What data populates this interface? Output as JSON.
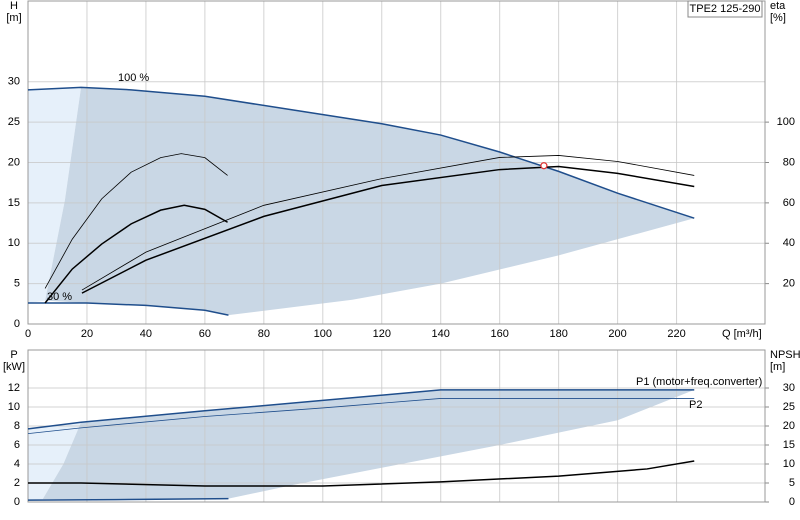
{
  "chart_data": [
    {
      "type": "line",
      "title": "TPE2 125-290",
      "ylabel": "H",
      "yunit": "[m]",
      "y2label": "eta",
      "y2unit": "[%]",
      "xlabel": "Q [m³/h]",
      "xlim": [
        0,
        250
      ],
      "xticks": [
        0,
        20,
        40,
        60,
        80,
        100,
        120,
        140,
        160,
        180,
        200,
        220
      ],
      "ylim": [
        0,
        40
      ],
      "yticks": [
        0,
        5,
        10,
        15,
        20,
        25,
        30
      ],
      "y2lim": [
        0,
        160
      ],
      "y2ticks": [
        20,
        40,
        60,
        80,
        100
      ],
      "grid": true,
      "xtick_labels": true,
      "series": [
        {
          "kind": "area",
          "color": "#e6f0fa",
          "x": [
            0,
            18,
            12.5,
            5.8,
            0
          ],
          "values": [
            29,
            29.3,
            15.3,
            2.9,
            2.6
          ]
        },
        {
          "kind": "area",
          "color": "#c9d7e5",
          "x": [
            18,
            35,
            60,
            90,
            120,
            140,
            160,
            180,
            200,
            226,
            180,
            140,
            110,
            68,
            60,
            40,
            20,
            5.8,
            12.5
          ],
          "values": [
            29.3,
            29,
            28.2,
            26.5,
            24.8,
            23.4,
            21.3,
            18.9,
            16.2,
            13.1,
            8.5,
            5,
            3,
            1.1,
            1.7,
            2.3,
            2.6,
            2.9,
            15.3
          ]
        },
        {
          "name": "100 %",
          "kind": "line",
          "weight": "thick",
          "color": "#1f4e8c",
          "x": [
            0,
            18,
            35,
            60,
            90,
            120,
            140,
            160,
            180,
            200,
            226
          ],
          "values": [
            29,
            29.3,
            29,
            28.2,
            26.5,
            24.8,
            23.4,
            21.3,
            18.9,
            16.2,
            13.1
          ]
        },
        {
          "name": "30 %",
          "kind": "line",
          "weight": "thick",
          "color": "#1f4e8c",
          "x": [
            0,
            20,
            40,
            60,
            68
          ],
          "values": [
            2.6,
            2.6,
            2.3,
            1.7,
            1.1
          ]
        },
        {
          "kind": "line",
          "weight": "thin",
          "color": "#000000",
          "x": [
            5.8,
            15,
            25,
            35,
            45,
            52,
            60,
            67.7
          ],
          "values": [
            4.4,
            10.5,
            15.5,
            18.8,
            20.6,
            21.1,
            20.6,
            18.4
          ]
        },
        {
          "kind": "line",
          "weight": "thick",
          "color": "#000000",
          "x": [
            5.8,
            15,
            25,
            35,
            45,
            53,
            60,
            67.7
          ],
          "values": [
            2.6,
            6.8,
            9.9,
            12.4,
            14.1,
            14.7,
            14.2,
            12.6
          ]
        },
        {
          "kind": "line",
          "weight": "thin",
          "color": "#000000",
          "axis": "y2",
          "x": [
            18.3,
            40,
            80,
            120,
            160,
            180,
            200,
            226
          ],
          "values": [
            16.8,
            35.6,
            58.8,
            72,
            82.5,
            83.5,
            80.5,
            73.6
          ]
        },
        {
          "kind": "line",
          "weight": "thick",
          "color": "#000000",
          "axis": "y2",
          "x": [
            18.3,
            40,
            80,
            120,
            160,
            180,
            200,
            226
          ],
          "values": [
            15.3,
            31.6,
            53.3,
            68.6,
            76.5,
            78,
            74.6,
            68.1
          ]
        }
      ],
      "markers": [
        {
          "x": 175,
          "y": 19.6,
          "color": "#e03030"
        }
      ]
    },
    {
      "type": "line",
      "ylabel": "P",
      "yunit": "[kW]",
      "y2label": "NPSH",
      "y2unit": "[m]",
      "xlim": [
        0,
        250
      ],
      "xticks": [
        0,
        20,
        40,
        60,
        80,
        100,
        120,
        140,
        160,
        180,
        200,
        220
      ],
      "ylim": [
        0,
        16
      ],
      "yticks": [
        0,
        2,
        4,
        6,
        8,
        10,
        12
      ],
      "y2lim": [
        0,
        40
      ],
      "y2ticks": [
        0,
        5,
        10,
        15,
        20,
        25,
        30
      ],
      "grid": true,
      "xtick_labels": false,
      "series": [
        {
          "kind": "area",
          "color": "#e6f0fa",
          "x": [
            0,
            18,
            12,
            5,
            0
          ],
          "values": [
            7.7,
            8.4,
            4,
            0.3,
            0.2
          ]
        },
        {
          "kind": "area",
          "color": "#c9d7e5",
          "x": [
            18,
            60,
            100,
            140,
            226,
            200,
            160,
            120,
            90,
            68,
            40,
            5,
            12
          ],
          "values": [
            8.4,
            9.6,
            10.7,
            11.8,
            11.8,
            8.6,
            6,
            3.6,
            1.8,
            0.35,
            0.3,
            0.3,
            4
          ]
        },
        {
          "name": "P1 (motor+freq.converter)",
          "kind": "line",
          "weight": "thick",
          "color": "#1f4e8c",
          "x": [
            0,
            18,
            60,
            100,
            140,
            226
          ],
          "values": [
            7.7,
            8.4,
            9.6,
            10.7,
            11.8,
            11.8
          ]
        },
        {
          "name": "P2",
          "kind": "line",
          "weight": "thin",
          "color": "#1f4e8c",
          "x": [
            0,
            18,
            60,
            100,
            140,
            226
          ],
          "values": [
            7.2,
            7.8,
            9.0,
            9.9,
            10.9,
            10.9
          ]
        },
        {
          "kind": "line",
          "weight": "thick",
          "color": "#1f4e8c",
          "x": [
            0,
            30,
            68
          ],
          "values": [
            0.2,
            0.25,
            0.35
          ]
        },
        {
          "kind": "line",
          "weight": "thick",
          "color": "#000000",
          "axis": "y2",
          "x": [
            0,
            18,
            60,
            100,
            140,
            180,
            210,
            226
          ],
          "values": [
            5,
            5,
            4.2,
            4.2,
            5.3,
            6.8,
            8.7,
            10.8
          ]
        }
      ],
      "markers": []
    }
  ]
}
